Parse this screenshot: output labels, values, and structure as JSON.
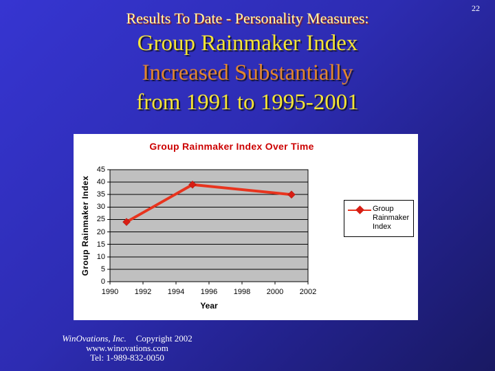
{
  "slide": {
    "page_number": "22",
    "subtitle": "Results To Date - Personality Measures:",
    "title_lines": [
      "Group Rainmaker Index",
      "Increased Substantially",
      "from 1991 to 1995-2001"
    ]
  },
  "chart_data": {
    "type": "line",
    "title": "Group Rainmaker Index Over Time",
    "xlabel": "Year",
    "ylabel": "Group Rainmaker Index",
    "series": [
      {
        "name": "Group Rainmaker Index",
        "x": [
          1991,
          1995,
          2001
        ],
        "values": [
          24,
          39,
          35
        ]
      }
    ],
    "x": [
      1991,
      1995,
      2001
    ],
    "values": [
      24,
      39,
      35
    ],
    "xlim": [
      1990,
      2002
    ],
    "ylim": [
      0,
      45
    ],
    "x_ticks": [
      1990,
      1992,
      1994,
      1996,
      1998,
      2000,
      2002
    ],
    "y_ticks": [
      0,
      5,
      10,
      15,
      20,
      25,
      30,
      35,
      40,
      45
    ],
    "grid": "horizontal-only",
    "marker": "diamond",
    "legend_position": "right",
    "legend_label": "Group Rainmaker Index",
    "colors": {
      "line": "#e8341e",
      "marker": "#d71e14",
      "plot_bg": "#c0c0c0",
      "grid": "#000000",
      "title": "#cc0000"
    }
  },
  "footer": {
    "company": "WinOvations, Inc.",
    "copyright": "Copyright 2002",
    "website": "www.winovations.com",
    "phone": "Tel: 1-989-832-0050"
  }
}
